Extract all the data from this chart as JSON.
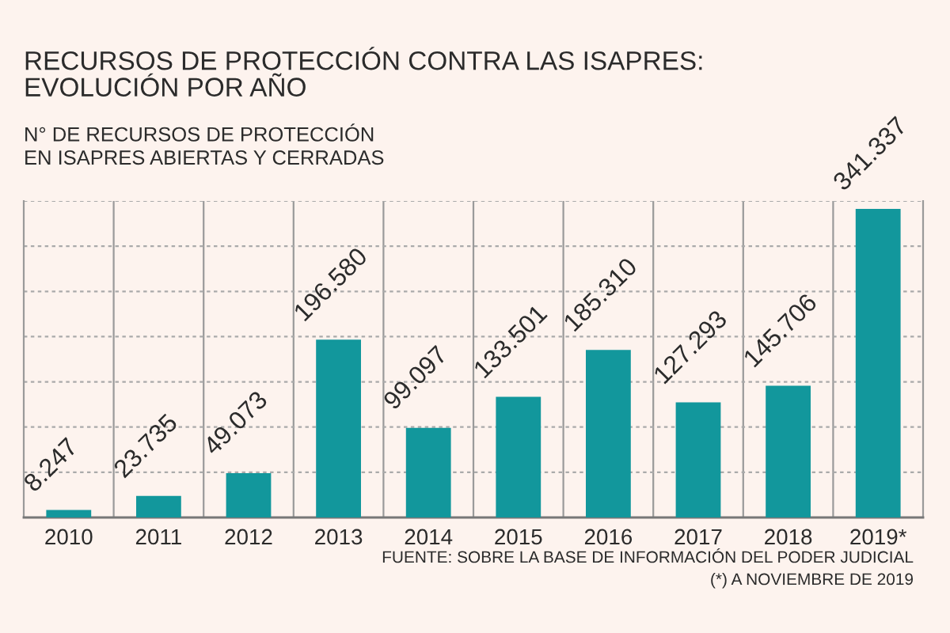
{
  "chart_data": {
    "type": "bar",
    "title": "RECURSOS DE PROTECCIÓN CONTRA LAS ISAPRES:\nEVOLUCIÓN POR AÑO",
    "subtitle": "N° DE RECURSOS DE PROTECCIÓN\nEN ISAPRES ABIERTAS Y CERRADAS",
    "categories": [
      "2010",
      "2011",
      "2012",
      "2013",
      "2014",
      "2015",
      "2016",
      "2017",
      "2018",
      "2019*"
    ],
    "values": [
      8247,
      23735,
      49073,
      196580,
      99097,
      133501,
      185310,
      127293,
      145706,
      341337
    ],
    "value_labels": [
      "8.247",
      "23.735",
      "49.073",
      "196.580",
      "99.097",
      "133.501",
      "185.310",
      "127.293",
      "145.706",
      "341.337"
    ],
    "color": "#12979c",
    "ylim": [
      0,
      350000
    ],
    "yticks": [
      {
        "value": 0,
        "label": null
      },
      {
        "value": 50000,
        "label": null
      },
      {
        "value": 100000,
        "label": null
      },
      {
        "value": 150000,
        "label": null
      },
      {
        "value": 200000,
        "label": null
      },
      {
        "value": 250000,
        "label": null
      },
      {
        "value": 300000,
        "label": null
      },
      {
        "value": 350000,
        "label": null
      }
    ],
    "grid": true,
    "annotations": [
      "FUENTE: SOBRE LA BASE DE INFORMACIÓN DEL PODER JUDICIAL",
      "(*) A NOVIEMBRE DE 2019"
    ]
  }
}
